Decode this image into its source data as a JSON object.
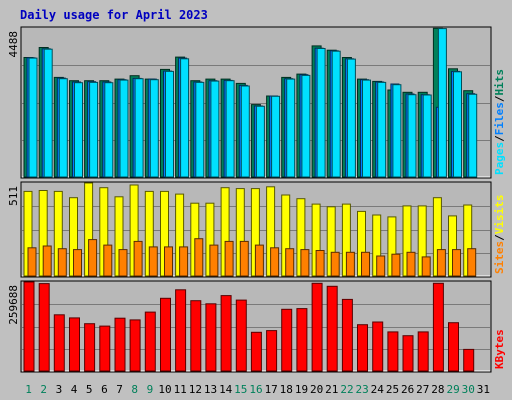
{
  "chart_data": {
    "type": "bar",
    "title": "Daily usage for April 2023",
    "categories": [
      "1",
      "2",
      "3",
      "4",
      "5",
      "6",
      "7",
      "8",
      "9",
      "10",
      "11",
      "12",
      "13",
      "14",
      "15",
      "16",
      "17",
      "18",
      "19",
      "20",
      "21",
      "22",
      "23",
      "24",
      "25",
      "26",
      "27",
      "28",
      "29",
      "30",
      "31"
    ],
    "weekend_days": [
      "1",
      "2",
      "8",
      "9",
      "15",
      "16",
      "22",
      "23",
      "29",
      "30"
    ],
    "colors": {
      "background": "#c0c0c0",
      "plot_background": "#b8b8b8",
      "title": "#0000c0",
      "hits": "#00805a",
      "files": "#0080ff",
      "pages": "#00e0ff",
      "visits": "#ffff00",
      "sites": "#ff8000",
      "kbytes": "#ff0000",
      "weekday_label": "#000000",
      "weekend_label": "#00805a"
    },
    "panels": [
      {
        "name": "top",
        "ymax_label": "4488",
        "ymax": 4488,
        "right_label": [
          "Pages",
          "Files",
          "Hits"
        ],
        "series": [
          {
            "name": "Hits",
            "values": [
              3600,
              3900,
              3000,
              2900,
              2900,
              2900,
              2950,
              3050,
              2950,
              3240,
              3610,
              2900,
              2950,
              2950,
              2820,
              2180,
              2440,
              3000,
              3100,
              3950,
              3820,
              3600,
              2950,
              2880,
              2620,
              2550,
              2550,
              4480,
              3260,
              2600,
              0
            ]
          },
          {
            "name": "Files",
            "values": [
              3590,
              3860,
              2980,
              2860,
              2870,
              2860,
              2930,
              2970,
              2950,
              3190,
              3580,
              2860,
              2900,
              2910,
              2760,
              2140,
              2440,
              2960,
              3080,
              3880,
              3800,
              3560,
              2930,
              2860,
              2800,
              2500,
              2480,
              2100,
              3180,
              2510,
              0
            ]
          },
          {
            "name": "Pages",
            "values": [
              3580,
              3850,
              2960,
              2840,
              2850,
              2840,
              2920,
              2960,
              2930,
              3180,
              3560,
              2850,
              2890,
              2900,
              2740,
              2130,
              2430,
              2950,
              3060,
              3870,
              3790,
              3550,
              2920,
              2850,
              2780,
              2480,
              2470,
              4470,
              3170,
              2490,
              0
            ]
          }
        ]
      },
      {
        "name": "middle",
        "ymax_label": "511",
        "ymax": 511,
        "right_label": [
          "Sites",
          "Visits"
        ],
        "series": [
          {
            "name": "Visits",
            "values": [
              465,
              470,
              465,
              430,
              511,
              485,
              435,
              500,
              465,
              465,
              450,
              400,
              400,
              485,
              480,
              480,
              490,
              445,
              425,
              395,
              380,
              395,
              355,
              335,
              325,
              385,
              385,
              430,
              330,
              390,
              0
            ]
          },
          {
            "name": "Sites",
            "values": [
              155,
              165,
              150,
              145,
              200,
              170,
              145,
              190,
              160,
              160,
              160,
              205,
              170,
              190,
              190,
              170,
              155,
              150,
              145,
              140,
              130,
              130,
              130,
              110,
              120,
              130,
              105,
              145,
              145,
              150,
              0
            ]
          }
        ]
      },
      {
        "name": "bottom",
        "ymax_label": "259688",
        "ymax": 259688,
        "right_label": [
          "KBytes"
        ],
        "series": [
          {
            "name": "KBytes",
            "values": [
              259688,
              255000,
              164000,
              155000,
              138000,
              131000,
              154000,
              149000,
              172000,
              212000,
              237000,
              205000,
              196000,
              220000,
              207000,
              113000,
              118000,
              180000,
              182000,
              256000,
              247000,
              209000,
              135000,
              143000,
              114000,
              103000,
              114000,
              256000,
              141000,
              63000,
              0
            ]
          }
        ]
      }
    ]
  }
}
